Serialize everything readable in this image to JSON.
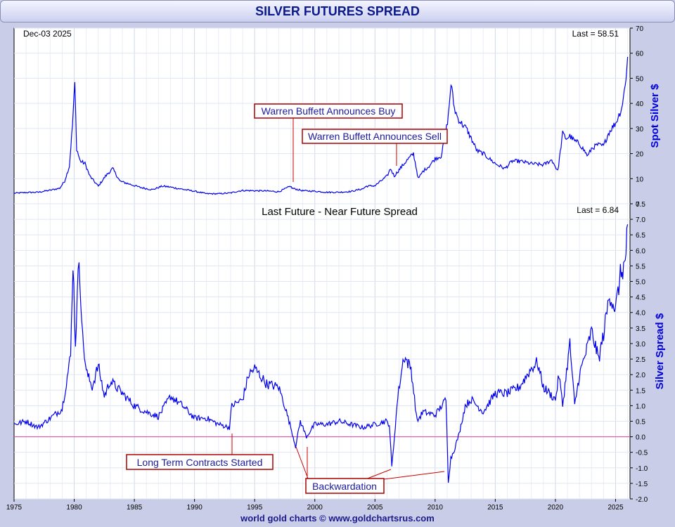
{
  "footer": "world gold charts © www.goldchartsrus.com",
  "chart_data": [
    {
      "type": "line",
      "title": "SILVER FUTURES SPREAD",
      "date_label": "Dec-03  2025",
      "last_label": "Last = 58.51",
      "ylabel": "Spot Silver $",
      "ylim": [
        0,
        70
      ],
      "yticks": [
        0,
        10,
        20,
        30,
        40,
        50,
        60,
        70
      ],
      "xlim": [
        1975,
        2026.2
      ],
      "xticks": [
        1975,
        1980,
        1985,
        1990,
        1995,
        2000,
        2005,
        2010,
        2015,
        2020,
        2025
      ],
      "annotations": [
        "Warren Buffett Announces Buy",
        "Warren Buffett Announces Sell"
      ],
      "series": [
        {
          "name": "Spot Silver",
          "x": [
            1975,
            1976,
            1977,
            1978,
            1978.8,
            1979.2,
            1979.6,
            1979.85,
            1980.05,
            1980.2,
            1980.5,
            1980.9,
            1981.3,
            1982,
            1982.6,
            1983.2,
            1983.8,
            1984.5,
            1985.5,
            1986.5,
            1987.3,
            1987.8,
            1988.5,
            1990,
            1991,
            1992,
            1993,
            1993.6,
            1994,
            1995,
            1996,
            1997,
            1998,
            1998.1,
            1999,
            2000,
            2001,
            2002,
            2003,
            2004,
            2004.3,
            2005,
            2006,
            2006.3,
            2006.6,
            2007,
            2007.6,
            2008.2,
            2008.6,
            2009,
            2009.5,
            2010,
            2010.5,
            2010.8,
            2011.1,
            2011.32,
            2011.6,
            2011.9,
            2012.2,
            2012.6,
            2013,
            2013.5,
            2014,
            2015,
            2015.8,
            2016.4,
            2017,
            2018,
            2019,
            2019.7,
            2020.2,
            2020.6,
            2020.9,
            2021.2,
            2021.6,
            2022,
            2022.7,
            2023,
            2023.5,
            2024,
            2024.4,
            2024.8,
            2025,
            2025.5,
            2025.8,
            2026.0
          ],
          "y": [
            4.2,
            4.5,
            4.6,
            5.4,
            6.2,
            9,
            15,
            31,
            48,
            22,
            17,
            16,
            11,
            7,
            11,
            14,
            9,
            8,
            6.5,
            5.6,
            7,
            6.8,
            6.2,
            5,
            4,
            4,
            4.3,
            5,
            5.3,
            5.2,
            5.1,
            4.8,
            7,
            6.2,
            5.2,
            5,
            4.6,
            4.6,
            4.9,
            6,
            7,
            7.2,
            11,
            14,
            11,
            13.5,
            17,
            20,
            10,
            13,
            15,
            18,
            19,
            26,
            35,
            48,
            38,
            34,
            32,
            30,
            26,
            21,
            20,
            16,
            14,
            17,
            17,
            16,
            15.5,
            17.5,
            13,
            28,
            26,
            27,
            25,
            24,
            19,
            22,
            23.5,
            23,
            28,
            31,
            32,
            38,
            47,
            58.51
          ]
        }
      ]
    },
    {
      "type": "line",
      "title": "Last Future - Near Future Spread",
      "last_label": "Last = 6.84",
      "ylabel": "Silver Spread $",
      "ylim": [
        -2.0,
        7.5
      ],
      "yticks": [
        -2.0,
        -1.5,
        -1.0,
        -0.5,
        0.0,
        0.5,
        1.0,
        1.5,
        2.0,
        2.5,
        3.0,
        3.5,
        4.0,
        4.5,
        5.0,
        5.5,
        6.0,
        6.5,
        7.0,
        7.5
      ],
      "xlim": [
        1975,
        2026.2
      ],
      "annotations": [
        "Long Term Contracts Started",
        "Backwardation"
      ],
      "series": [
        {
          "name": "Spread",
          "x": [
            1975,
            1976,
            1977,
            1978,
            1979,
            1979.7,
            1979.9,
            1980.1,
            1980.4,
            1980.7,
            1981,
            1981.5,
            1982,
            1982.5,
            1983,
            1984,
            1985,
            1986,
            1987,
            1988,
            1989,
            1990,
            1991,
            1992,
            1992.9,
            1993.1,
            1994,
            1994.5,
            1995,
            1996,
            1997,
            1997.5,
            1998,
            1998.4,
            1998.8,
            1999.3,
            2000,
            2001,
            2002,
            2003,
            2004,
            2005,
            2005.9,
            2006.2,
            2006.4,
            2006.9,
            2007.4,
            2008,
            2008.5,
            2009,
            2010,
            2010.9,
            2011.1,
            2011.3,
            2011.6,
            2012,
            2012.5,
            2013,
            2014,
            2015,
            2016,
            2017,
            2018,
            2018.5,
            2019,
            2020,
            2020.3,
            2020.6,
            2021.2,
            2021.6,
            2022,
            2022.6,
            2023,
            2023.6,
            2024,
            2024.5,
            2025,
            2025.4,
            2025.8,
            2026.0
          ],
          "y": [
            0.4,
            0.5,
            0.3,
            0.6,
            0.9,
            2.6,
            5.7,
            3.0,
            5.8,
            3.2,
            2.1,
            1.6,
            2.3,
            1.3,
            1.8,
            1.4,
            1.0,
            0.8,
            0.65,
            1.3,
            1.0,
            0.6,
            0.6,
            0.4,
            0.3,
            1.0,
            1.2,
            2.0,
            2.2,
            1.7,
            1.6,
            1.0,
            0.3,
            -0.3,
            0.5,
            0.0,
            0.4,
            0.4,
            0.5,
            0.4,
            0.3,
            0.4,
            0.5,
            0.4,
            -1.0,
            1.3,
            2.6,
            2.2,
            0.5,
            0.8,
            0.7,
            1.2,
            -1.35,
            -0.7,
            -0.4,
            0.1,
            1.0,
            1.2,
            0.8,
            1.4,
            1.4,
            1.6,
            2.2,
            2.4,
            1.6,
            1.2,
            2.0,
            1.0,
            3.0,
            1.0,
            2.0,
            2.8,
            3.4,
            2.5,
            3.3,
            4.6,
            4.1,
            5.2,
            5.6,
            6.84
          ]
        }
      ]
    }
  ]
}
